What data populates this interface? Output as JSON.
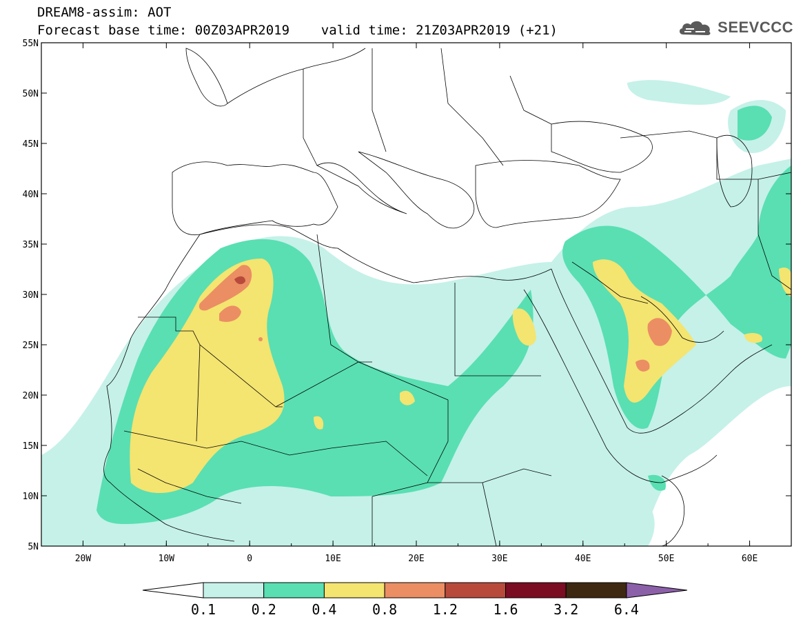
{
  "header": {
    "line1": "DREAM8-assim: AOT",
    "line2": "Forecast base time: 00Z03APR2019    valid time: 21Z03APR2019 (+21)"
  },
  "logo": {
    "text": "SEEVCCC",
    "icon": "cloud-icon"
  },
  "map": {
    "lat_labels": [
      "55N",
      "50N",
      "45N",
      "40N",
      "35N",
      "30N",
      "25N",
      "20N",
      "15N",
      "10N",
      "5N"
    ],
    "lon_labels": [
      "20W",
      "10W",
      "0",
      "10E",
      "20E",
      "30E",
      "40E",
      "50E",
      "60E"
    ],
    "lat_range": [
      5,
      55
    ],
    "lon_range": [
      -25,
      65
    ]
  },
  "legend": {
    "labels": [
      "0.1",
      "0.2",
      "0.4",
      "0.8",
      "1.2",
      "1.6",
      "3.2",
      "6.4"
    ],
    "colors": [
      "#ffffff",
      "#c5f1e8",
      "#59dfb2",
      "#f4e470",
      "#eb8e63",
      "#b84a3c",
      "#7a0d22",
      "#3e2812",
      "#8c60a9"
    ]
  }
}
